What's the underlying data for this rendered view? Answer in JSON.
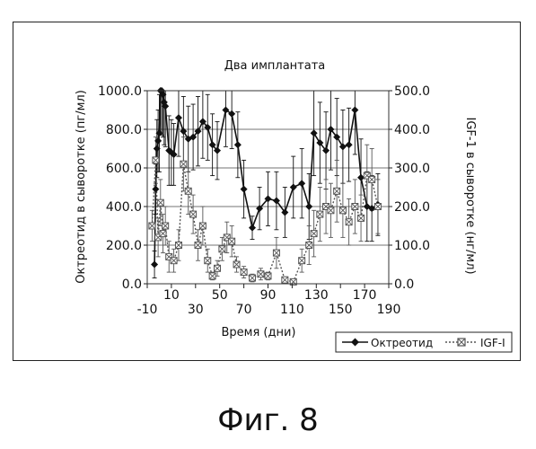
{
  "caption": "Фиг. 8",
  "chart_data": {
    "type": "line",
    "title": "Два имплантата",
    "xlabel": "Время (дни)",
    "ylabel": "Октреотид в сыворотке (пг/мл)",
    "y2label": "IGF-1 в сыворотке (нг/мл)",
    "xlim": [
      -10,
      190
    ],
    "ylim": [
      0,
      1000
    ],
    "y2lim": [
      0,
      500
    ],
    "xticks": [
      "-10",
      "30",
      "70",
      "110",
      "150",
      "190"
    ],
    "xtick_values": [
      -10,
      30,
      70,
      110,
      150,
      190
    ],
    "xticks_minor": [
      "10",
      "50",
      "90",
      "130",
      "170"
    ],
    "xtick_minor_values": [
      10,
      50,
      90,
      130,
      170
    ],
    "yticks": [
      "0.0",
      "200.0",
      "400.0",
      "600.0",
      "800.0",
      "1000.0"
    ],
    "ytick_values": [
      0,
      200,
      400,
      600,
      800,
      1000
    ],
    "y2ticks": [
      "0.0",
      "100.0",
      "200.0",
      "300.0",
      "400.0",
      "500.0"
    ],
    "y2tick_values": [
      0,
      100,
      200,
      300,
      400,
      500
    ],
    "grid": "horizontal",
    "legend_position": "bottom-right",
    "series": [
      {
        "name": "Октреотид",
        "axis": "left",
        "color": "#111111",
        "marker": "diamond",
        "x": [
          -4,
          -3,
          -2,
          -1,
          0,
          1,
          2,
          3,
          4,
          5,
          8,
          10,
          12,
          16,
          20,
          24,
          28,
          32,
          36,
          40,
          44,
          48,
          55,
          60,
          65,
          70,
          77,
          83,
          90,
          97,
          104,
          111,
          118,
          124,
          128,
          133,
          138,
          142,
          147,
          152,
          157,
          162,
          167,
          172,
          176,
          181
        ],
        "y": [
          100,
          490,
          700,
          740,
          780,
          1000,
          1000,
          980,
          940,
          920,
          690,
          680,
          670,
          860,
          790,
          750,
          760,
          790,
          840,
          810,
          720,
          690,
          900,
          880,
          720,
          490,
          290,
          390,
          440,
          430,
          370,
          500,
          520,
          400,
          780,
          730,
          690,
          800,
          760,
          710,
          720,
          900,
          550,
          400,
          390,
          410
        ],
        "err": [
          70,
          130,
          150,
          160,
          200,
          220,
          230,
          220,
          220,
          210,
          180,
          170,
          160,
          200,
          180,
          170,
          170,
          180,
          190,
          170,
          160,
          150,
          190,
          180,
          170,
          150,
          60,
          110,
          140,
          150,
          130,
          160,
          180,
          170,
          220,
          210,
          200,
          210,
          200,
          190,
          190,
          230,
          200,
          180,
          170,
          160
        ]
      },
      {
        "name": "IGF-I",
        "axis": "right",
        "color": "#555555",
        "marker": "x-square",
        "dashed": true,
        "x": [
          -6,
          -3,
          -1,
          1,
          3,
          5,
          8,
          12,
          16,
          20,
          24,
          28,
          32,
          36,
          40,
          44,
          48,
          52,
          56,
          60,
          64,
          70,
          77,
          84,
          90,
          97,
          104,
          111,
          118,
          124,
          128,
          133,
          138,
          142,
          147,
          152,
          157,
          162,
          167,
          172,
          176,
          181
        ],
        "y": [
          150,
          320,
          120,
          210,
          130,
          150,
          70,
          60,
          100,
          310,
          240,
          180,
          100,
          150,
          60,
          20,
          40,
          90,
          120,
          110,
          50,
          30,
          15,
          25,
          20,
          80,
          10,
          5,
          60,
          100,
          130,
          180,
          200,
          190,
          240,
          190,
          160,
          200,
          170,
          280,
          270,
          200
        ],
        "err": [
          40,
          60,
          50,
          60,
          50,
          50,
          40,
          30,
          40,
          70,
          60,
          50,
          40,
          50,
          30,
          10,
          20,
          30,
          40,
          40,
          20,
          15,
          10,
          15,
          10,
          40,
          8,
          5,
          30,
          50,
          60,
          70,
          70,
          70,
          80,
          70,
          60,
          70,
          60,
          80,
          80,
          70
        ]
      }
    ]
  }
}
